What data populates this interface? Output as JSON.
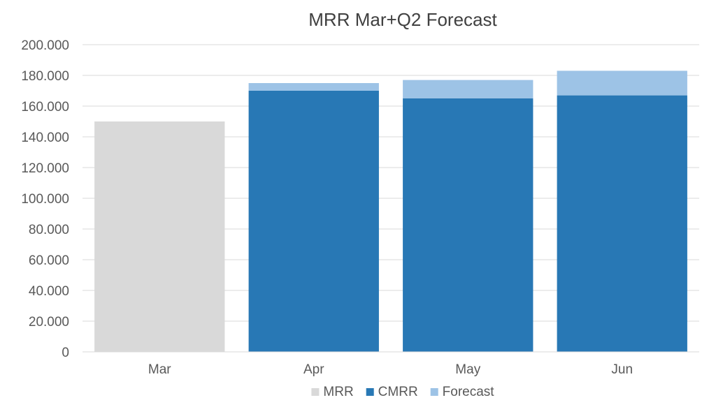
{
  "chart_data": {
    "type": "bar",
    "stacked": true,
    "title": "MRR Mar+Q2 Forecast",
    "categories": [
      "Mar",
      "Apr",
      "May",
      "Jun"
    ],
    "series": [
      {
        "name": "MRR",
        "color": "#d9d9d9",
        "values": [
          150000,
          0,
          0,
          0
        ]
      },
      {
        "name": "CMRR",
        "color": "#2878b5",
        "values": [
          0,
          170000,
          165000,
          167000
        ]
      },
      {
        "name": "Forecast",
        "color": "#9dc3e6",
        "values": [
          0,
          5000,
          12000,
          16000
        ]
      }
    ],
    "ylim": [
      0,
      200000
    ],
    "yticks": [
      0,
      20000,
      40000,
      60000,
      80000,
      100000,
      120000,
      140000,
      160000,
      180000,
      200000
    ],
    "ytick_labels": [
      "0",
      "20.000",
      "40.000",
      "60.000",
      "80.000",
      "100.000",
      "120.000",
      "140.000",
      "160.000",
      "180.000",
      "200.000"
    ],
    "grid": true,
    "legend_position": "bottom"
  }
}
